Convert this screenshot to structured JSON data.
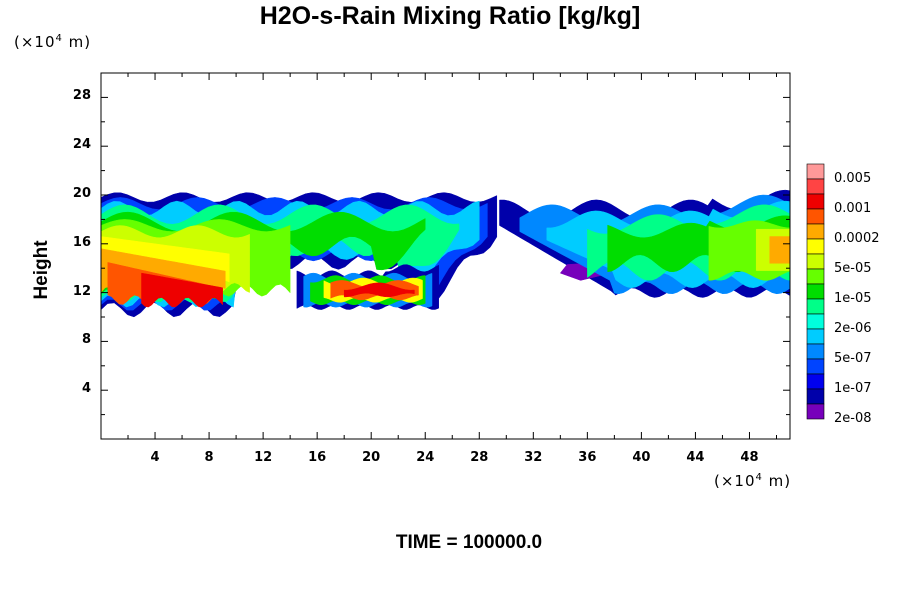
{
  "title": "H2O-s-Rain Mixing Ratio [kg/kg]",
  "y_unit": {
    "prefix": "(×10",
    "exp": "4",
    "suffix": " m)"
  },
  "x_unit": {
    "prefix": "(×10",
    "exp": "4",
    "suffix": " m)"
  },
  "ylabel": "Height",
  "time_label": "TIME = 100000.0",
  "chart_data": {
    "type": "heatmap",
    "title": "H2O-s-Rain Mixing Ratio [kg/kg]",
    "ylabel": "Height",
    "x_ticks": [
      "4",
      "8",
      "12",
      "16",
      "20",
      "24",
      "28",
      "32",
      "36",
      "40",
      "44",
      "48"
    ],
    "y_ticks": [
      "4",
      "8",
      "12",
      "16",
      "20",
      "24",
      "28"
    ],
    "xlim": [
      0,
      51
    ],
    "ylim": [
      0,
      30
    ],
    "colorbar": {
      "levels_labeled": [
        "0.005",
        "0.001",
        "0.0002",
        "5e-05",
        "1e-05",
        "2e-06",
        "5e-07",
        "1e-07",
        "2e-08"
      ],
      "colors": [
        "#ff9999",
        "#ff4444",
        "#ee0000",
        "#ff5500",
        "#ffaa00",
        "#ffff00",
        "#ccff00",
        "#66ff00",
        "#00dd00",
        "#00ff88",
        "#00ffdd",
        "#00ccff",
        "#0088ff",
        "#0044ff",
        "#0000ee",
        "#0000aa",
        "#7700bb"
      ]
    },
    "regions": [
      {
        "name": "left cloud layer",
        "x_range": [
          0,
          29
        ],
        "y_range": [
          10.5,
          20
        ],
        "max_value": "0.001"
      },
      {
        "name": "mid lower core",
        "x_range": [
          14.5,
          25
        ],
        "y_range": [
          10,
          14
        ],
        "max_value": "0.001"
      },
      {
        "name": "right cloud layer",
        "x_range": [
          29.5,
          51
        ],
        "y_range": [
          12,
          20
        ],
        "max_value": "0.0002"
      }
    ],
    "time": "100000.0",
    "grid": false
  }
}
